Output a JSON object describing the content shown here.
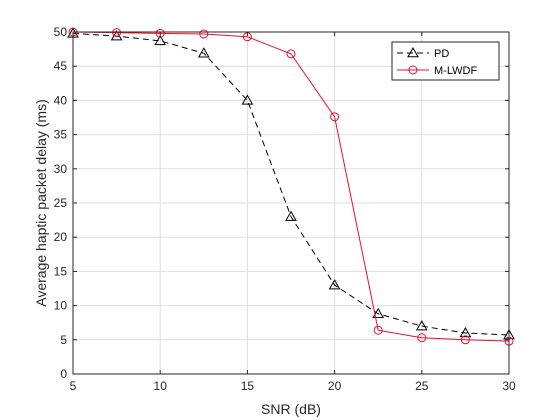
{
  "chart_data": {
    "type": "line",
    "title": "",
    "xlabel": "SNR (dB)",
    "ylabel": "Average haptic packet delay (ms)",
    "xlim": [
      5,
      30
    ],
    "ylim": [
      0,
      50
    ],
    "xticks": [
      5,
      10,
      15,
      20,
      25,
      30
    ],
    "yticks": [
      0,
      5,
      10,
      15,
      20,
      25,
      30,
      35,
      40,
      45,
      50
    ],
    "grid": true,
    "legend_position": "top-right",
    "series": [
      {
        "name": "PD",
        "color": "#000000",
        "line_style": "dashed",
        "marker": "triangle",
        "x": [
          5,
          7.5,
          10,
          12.5,
          15,
          17.5,
          20,
          22.5,
          25,
          27.5,
          30
        ],
        "y": [
          49.8,
          49.4,
          48.7,
          46.9,
          40.0,
          23.0,
          13.0,
          8.8,
          7.0,
          6.0,
          5.7
        ]
      },
      {
        "name": "M-LWDF",
        "color": "#e8112d",
        "line_style": "solid",
        "marker": "circle",
        "x": [
          5,
          7.5,
          10,
          12.5,
          15,
          17.5,
          20,
          22.5,
          25,
          27.5,
          30
        ],
        "y": [
          50.0,
          49.9,
          49.8,
          49.7,
          49.3,
          46.8,
          37.6,
          6.4,
          5.3,
          5.0,
          4.8
        ]
      }
    ]
  }
}
